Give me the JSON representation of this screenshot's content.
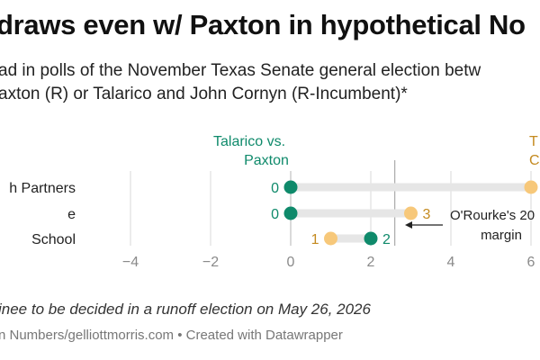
{
  "title": "draws even w/ Paxton in hypothetical No",
  "subtitle_lines": [
    "ad in polls of the November Texas Senate general election betw",
    "axton (R) or Talarico and John Cornyn (R-Incumbent)*"
  ],
  "colors": {
    "paxton": "#0f8a6b",
    "cornyn": "#f7c87a",
    "cornyn_text": "#c48a1f",
    "track": "#e6e6e6",
    "grid": "#d9d9d9",
    "tick_text": "#8a8a8a"
  },
  "chart_data": {
    "type": "dot",
    "xlim": [
      -5,
      6.3
    ],
    "x_ticks": [
      -4,
      -2,
      0,
      2,
      4,
      6
    ],
    "x_tick_labels": [
      "−4",
      "−2",
      "0",
      "2",
      "4",
      "6"
    ],
    "categories": [
      "h Partners",
      "e",
      "School"
    ],
    "series": [
      {
        "name": "Talarico vs. Paxton",
        "name_lines": [
          "Talarico vs.",
          "Paxton"
        ],
        "values": [
          0,
          0,
          2
        ]
      },
      {
        "name": "T C",
        "name_lines": [
          "T",
          "C"
        ],
        "values": [
          6,
          3,
          1
        ]
      }
    ],
    "value_labels": [
      {
        "paxton": "0",
        "cornyn": ""
      },
      {
        "paxton": "0",
        "cornyn": "3"
      },
      {
        "paxton": "2",
        "cornyn": "1"
      }
    ],
    "reference_line": {
      "x": 2.6,
      "label_lines": [
        "O'Rourke's 20",
        "margin"
      ]
    }
  },
  "note": "inee to be decided in a runoff election on May 26, 2026",
  "source": "n Numbers/gelliottmorris.com • Created with Datawrapper"
}
